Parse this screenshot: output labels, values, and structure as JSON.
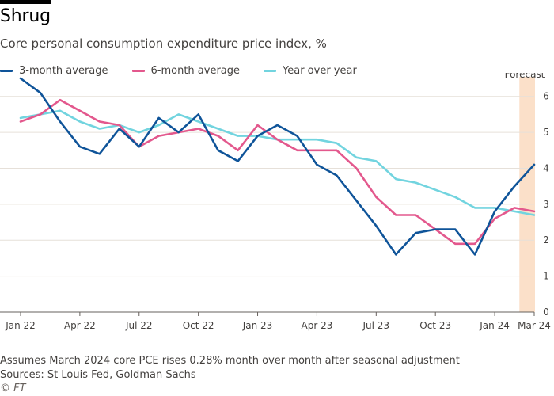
{
  "header": {
    "title": "Shrug",
    "subtitle": "Core personal consumption expenditure price index, %"
  },
  "footer": {
    "note": "Assumes March 2024 core PCE rises 0.28% month over month after seasonal adjustment",
    "source": "Sources: St Louis Fed, Goldman Sachs",
    "credit": "© FT"
  },
  "colors": {
    "three_month": "#0f5499",
    "six_month": "#e3588d",
    "yoy": "#72d4df",
    "forecast_band": "#fbe0c9",
    "grid": "#e6e0d9"
  },
  "chart_data": {
    "type": "line",
    "title": "Shrug",
    "subtitle": "Core personal consumption expenditure price index, %",
    "x": [
      "Jan 22",
      "Feb 22",
      "Mar 22",
      "Apr 22",
      "May 22",
      "Jun 22",
      "Jul 22",
      "Aug 22",
      "Sep 22",
      "Oct 22",
      "Nov 22",
      "Dec 22",
      "Jan 23",
      "Feb 23",
      "Mar 23",
      "Apr 23",
      "May 23",
      "Jun 23",
      "Jul 23",
      "Aug 23",
      "Sep 23",
      "Oct 23",
      "Nov 23",
      "Dec 23",
      "Jan 24",
      "Feb 24",
      "Mar 24"
    ],
    "x_tick_labels": [
      "Jan 22",
      "Apr 22",
      "Jul 22",
      "Oct 22",
      "Jan 23",
      "Apr 23",
      "Jul 23",
      "Oct 23",
      "Jan 24",
      "Mar 24"
    ],
    "ylim": [
      0,
      6.5
    ],
    "y_ticks": [
      0,
      1,
      2,
      3,
      4,
      5,
      6
    ],
    "grid": true,
    "legend_position": "top-left",
    "forecast": {
      "label": "Forecast",
      "start": "Mar 24"
    },
    "series": [
      {
        "name": "3-month average",
        "values": [
          6.5,
          6.1,
          5.3,
          4.6,
          4.4,
          5.1,
          4.6,
          5.4,
          5.0,
          5.5,
          4.5,
          4.2,
          4.9,
          5.2,
          4.9,
          4.1,
          3.8,
          3.1,
          2.4,
          1.6,
          2.2,
          2.3,
          2.3,
          1.6,
          2.8,
          3.5,
          4.1
        ]
      },
      {
        "name": "6-month average",
        "values": [
          5.3,
          5.5,
          5.9,
          5.6,
          5.3,
          5.2,
          4.6,
          4.9,
          5.0,
          5.1,
          4.9,
          4.5,
          5.2,
          4.8,
          4.5,
          4.5,
          4.5,
          4.0,
          3.2,
          2.7,
          2.7,
          2.3,
          1.9,
          1.9,
          2.6,
          2.9,
          2.8
        ]
      },
      {
        "name": "Year over year",
        "values": [
          5.4,
          5.5,
          5.6,
          5.3,
          5.1,
          5.2,
          5.0,
          5.2,
          5.5,
          5.3,
          5.1,
          4.9,
          4.9,
          4.8,
          4.8,
          4.8,
          4.7,
          4.3,
          4.2,
          3.7,
          3.6,
          3.4,
          3.2,
          2.9,
          2.9,
          2.8,
          2.7
        ]
      }
    ]
  }
}
